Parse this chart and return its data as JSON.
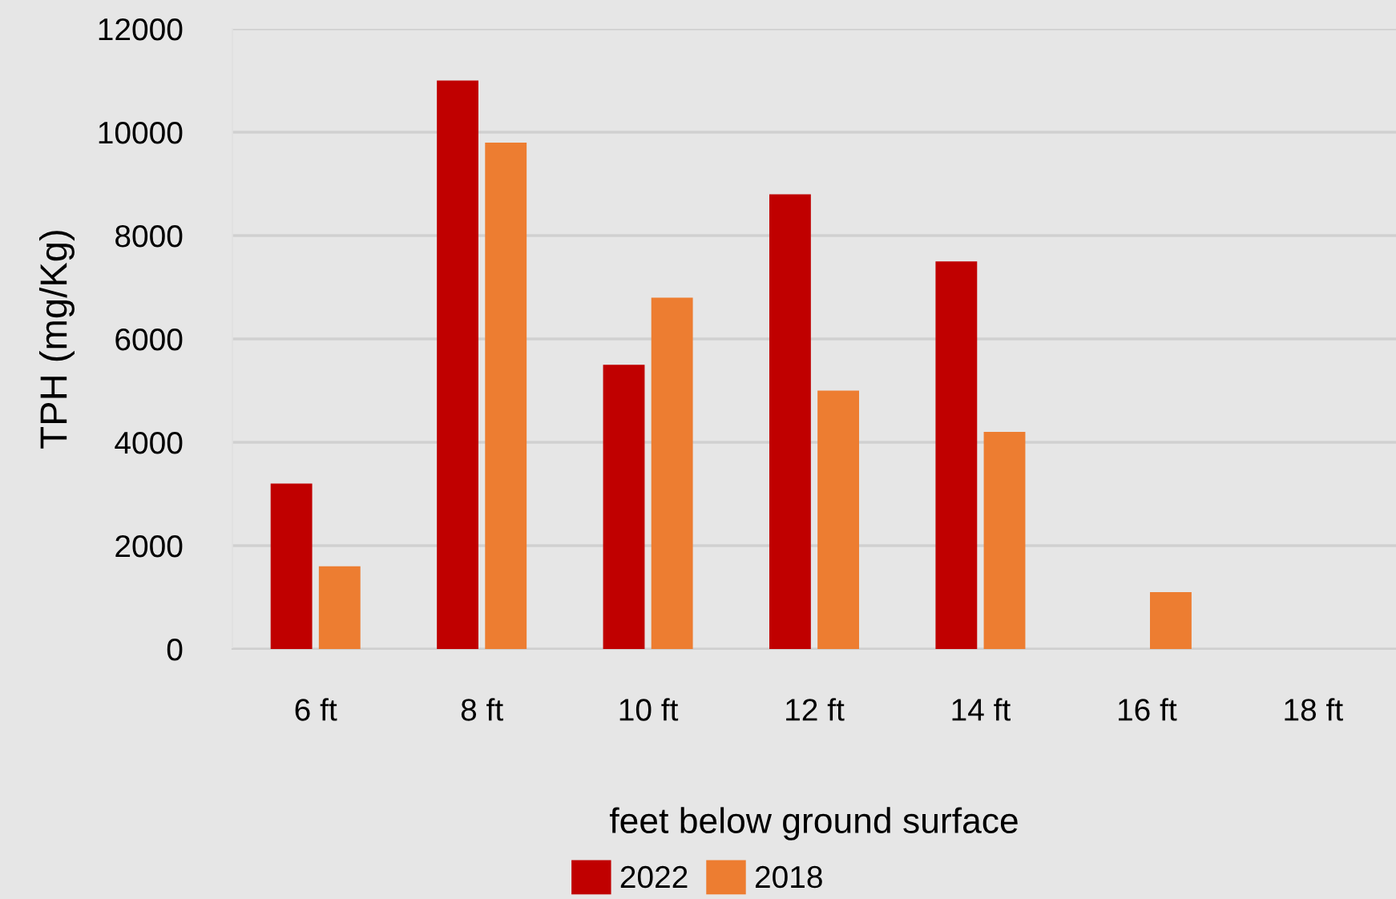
{
  "chart_data": {
    "type": "bar",
    "xlabel": "feet below ground surface",
    "ylabel": "TPH (mg/Kg)",
    "categories": [
      "6 ft",
      "8 ft",
      "10 ft",
      "12 ft",
      "14 ft",
      "16 ft",
      "18 ft"
    ],
    "series": [
      {
        "name": "2022",
        "color": "#c00000",
        "values": [
          3200,
          11000,
          5500,
          8800,
          7500,
          null,
          null
        ]
      },
      {
        "name": "2018",
        "color": "#ed7d31",
        "values": [
          1600,
          9800,
          6800,
          5000,
          4200,
          1100,
          null
        ]
      }
    ],
    "ylim": [
      0,
      12000
    ],
    "yticks": [
      0,
      2000,
      4000,
      6000,
      8000,
      10000,
      12000
    ],
    "grid": "y",
    "legend": "bottom"
  }
}
